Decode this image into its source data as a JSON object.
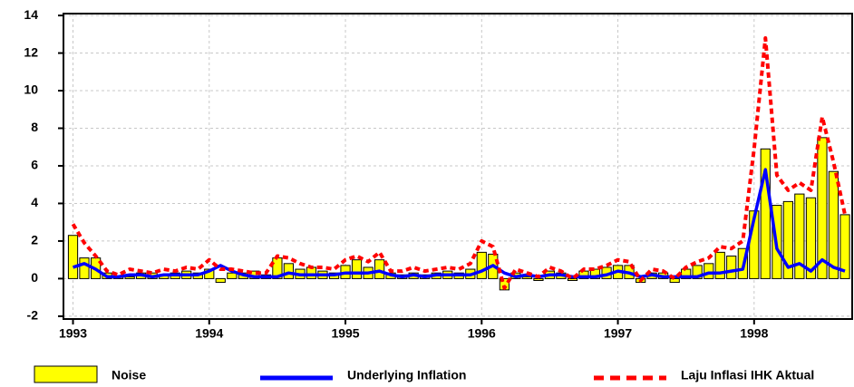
{
  "chart_data": {
    "type": "bar-line",
    "x": [
      1993,
      1993.083,
      1993.167,
      1993.25,
      1993.333,
      1993.417,
      1993.5,
      1993.583,
      1993.667,
      1993.75,
      1993.833,
      1993.917,
      1994,
      1994.083,
      1994.167,
      1994.25,
      1994.333,
      1994.417,
      1994.5,
      1994.583,
      1994.667,
      1994.75,
      1994.833,
      1994.917,
      1995,
      1995.083,
      1995.167,
      1995.25,
      1995.333,
      1995.417,
      1995.5,
      1995.583,
      1995.667,
      1995.75,
      1995.833,
      1995.917,
      1996,
      1996.083,
      1996.167,
      1996.25,
      1996.333,
      1996.417,
      1996.5,
      1996.583,
      1996.667,
      1996.75,
      1996.833,
      1996.917,
      1997,
      1997.083,
      1997.167,
      1997.25,
      1997.333,
      1997.417,
      1997.5,
      1997.583,
      1997.667,
      1997.75,
      1997.833,
      1997.917,
      1998,
      1998.083,
      1998.167,
      1998.25,
      1998.333,
      1998.417,
      1998.5,
      1998.583,
      1998.667
    ],
    "series": [
      {
        "name": "Noise",
        "type": "bar",
        "color": "#ffff00",
        "values": [
          2.3,
          1.1,
          1.1,
          0.3,
          0.1,
          0.1,
          0.3,
          0.3,
          0.2,
          0.3,
          0.4,
          0.3,
          0.5,
          -0.2,
          0.3,
          0.3,
          0.4,
          0.2,
          1.1,
          0.8,
          0.5,
          0.6,
          0.4,
          0.3,
          0.7,
          1.0,
          0.6,
          1.0,
          0.3,
          0.2,
          0.3,
          0.2,
          0.3,
          0.4,
          0.3,
          0.5,
          1.4,
          1.3,
          -0.6,
          0.3,
          0.1,
          -0.1,
          0.4,
          0.3,
          -0.1,
          0.4,
          0.5,
          0.6,
          0.7,
          0.7,
          -0.2,
          0.3,
          0.3,
          -0.2,
          0.5,
          0.7,
          0.8,
          1.4,
          1.2,
          1.6,
          3.6,
          6.9,
          3.9,
          4.1,
          4.5,
          4.3,
          7.5,
          5.7,
          3.4
        ]
      },
      {
        "name": "Underlying Inflation",
        "type": "line",
        "linestyle": "solid",
        "color": "#0000ff",
        "values": [
          0.6,
          0.8,
          0.5,
          0.1,
          0.1,
          0.2,
          0.2,
          0.1,
          0.2,
          0.2,
          0.2,
          0.2,
          0.4,
          0.7,
          0.4,
          0.2,
          0.1,
          0.1,
          0.1,
          0.3,
          0.2,
          0.2,
          0.2,
          0.2,
          0.3,
          0.3,
          0.3,
          0.4,
          0.2,
          0.1,
          0.2,
          0.1,
          0.2,
          0.2,
          0.2,
          0.2,
          0.4,
          0.7,
          0.3,
          0.1,
          0.2,
          0.1,
          0.2,
          0.2,
          0.1,
          0.1,
          0.1,
          0.2,
          0.4,
          0.3,
          0.1,
          0.2,
          0.1,
          0.1,
          0.1,
          0.1,
          0.3,
          0.3,
          0.4,
          0.5,
          3.2,
          5.8,
          1.6,
          0.6,
          0.8,
          0.4,
          1.0,
          0.6,
          0.4
        ]
      },
      {
        "name": "Laju Inflasi IHK Aktual",
        "type": "line",
        "linestyle": "dashed",
        "color": "#ff0000",
        "values": [
          2.9,
          1.9,
          1.2,
          0.4,
          0.2,
          0.5,
          0.4,
          0.3,
          0.5,
          0.4,
          0.6,
          0.5,
          1.0,
          0.5,
          0.5,
          0.4,
          0.3,
          0.3,
          1.2,
          1.1,
          0.8,
          0.6,
          0.6,
          0.5,
          1.0,
          1.2,
          0.9,
          1.4,
          0.4,
          0.4,
          0.6,
          0.4,
          0.5,
          0.6,
          0.5,
          0.8,
          2.0,
          1.7,
          -0.5,
          0.5,
          0.3,
          0.1,
          0.6,
          0.4,
          0.0,
          0.5,
          0.5,
          0.7,
          1.0,
          0.9,
          -0.1,
          0.5,
          0.4,
          0.0,
          0.6,
          0.9,
          1.1,
          1.7,
          1.6,
          2.0,
          6.9,
          12.8,
          5.5,
          4.7,
          5.1,
          4.7,
          8.6,
          6.2,
          3.4
        ]
      }
    ],
    "xlim": [
      1992.93,
      1998.72
    ],
    "xticks": [
      1993,
      1994,
      1995,
      1996,
      1997,
      1998
    ],
    "ylim": [
      -2.15,
      14.1
    ],
    "yticks": [
      -2,
      0,
      2,
      4,
      6,
      8,
      10,
      12,
      14
    ],
    "grid": true,
    "legend": "bottom"
  }
}
